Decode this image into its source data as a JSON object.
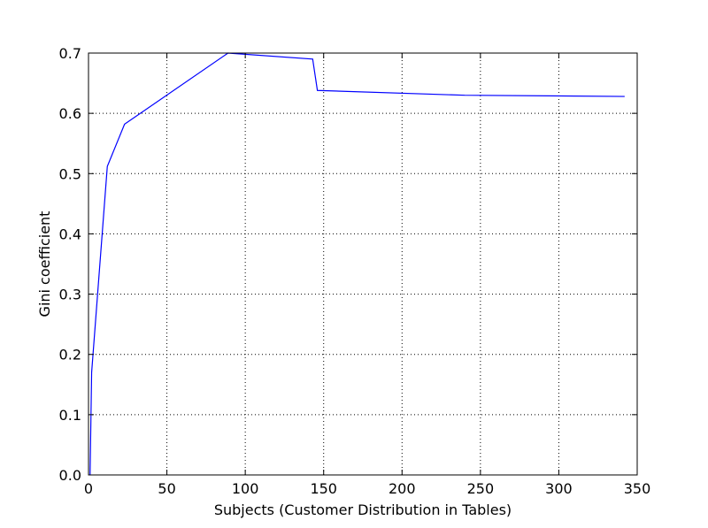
{
  "chart_data": {
    "type": "line",
    "title": "",
    "xlabel": "Subjects (Customer Distribution in Tables)",
    "ylabel": "Gini coefficient",
    "xlim": [
      0,
      350
    ],
    "ylim": [
      0,
      0.7
    ],
    "grid": true,
    "x_ticks": [
      0,
      50,
      100,
      150,
      200,
      250,
      300,
      350
    ],
    "x_tick_labels": [
      "0",
      "50",
      "100",
      "150",
      "200",
      "250",
      "300",
      "350"
    ],
    "y_ticks": [
      0,
      0.1,
      0.2,
      0.3,
      0.4,
      0.5,
      0.6,
      0.7
    ],
    "y_tick_labels": [
      "0.0",
      "0.1",
      "0.2",
      "0.3",
      "0.4",
      "0.5",
      "0.6",
      "0.7"
    ],
    "series": [
      {
        "color": "#0000ff",
        "x": [
          1,
          2,
          12,
          23,
          89,
          143,
          146,
          240,
          342
        ],
        "y": [
          0.0,
          0.17,
          0.512,
          0.582,
          0.7,
          0.69,
          0.638,
          0.63,
          0.628
        ]
      }
    ]
  }
}
